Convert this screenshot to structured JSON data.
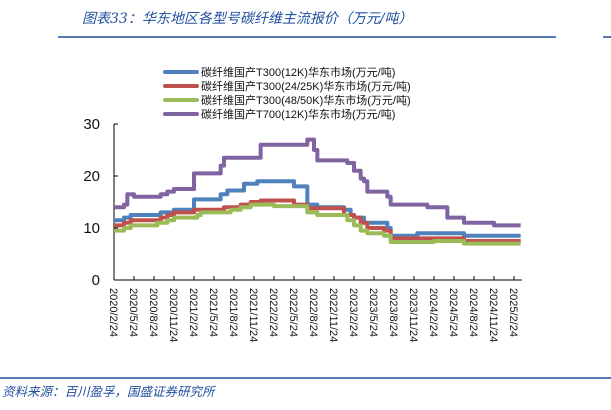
{
  "chart_data": {
    "type": "line",
    "title": "图表33：华东地区各型号碳纤维主流报价（万元/吨）",
    "source": "资料来源：百川盈孚，国盛证券研究所",
    "xlabel": "",
    "ylabel": "",
    "ylim": [
      0,
      30
    ],
    "yticks": [
      0,
      10,
      20,
      30
    ],
    "xlim": [
      "2020-02-24",
      "2025-05-24"
    ],
    "xtick_labels": [
      "2020/2/24",
      "2020/5/24",
      "2020/8/24",
      "2020/11/24",
      "2021/2/24",
      "2021/5/24",
      "2021/8/24",
      "2021/11/24",
      "2022/2/24",
      "2022/5/24",
      "2022/8/24",
      "2022/11/24",
      "2023/2/24",
      "2023/5/24",
      "2023/8/24",
      "2023/11/24",
      "2024/2/24",
      "2024/5/24",
      "2024/8/24",
      "2024/11/24",
      "2025/2/24"
    ],
    "grid": false,
    "legend_position": "top",
    "line_style": "step",
    "series": [
      {
        "name": "碳纤维国产T300(12K)华东市场(万元/吨)",
        "color": "#4f81bd",
        "points": [
          [
            "2020-02-24",
            11.5
          ],
          [
            "2020-04-09",
            12
          ],
          [
            "2020-05-09",
            12.5
          ],
          [
            "2020-09-24",
            13
          ],
          [
            "2020-11-24",
            13.5
          ],
          [
            "2021-02-24",
            15.5
          ],
          [
            "2021-06-24",
            16.5
          ],
          [
            "2021-07-24",
            17.2
          ],
          [
            "2021-10-09",
            18.5
          ],
          [
            "2021-12-09",
            19
          ],
          [
            "2022-05-24",
            18
          ],
          [
            "2022-07-24",
            14.5
          ],
          [
            "2022-09-09",
            14
          ],
          [
            "2023-01-09",
            13.5
          ],
          [
            "2023-02-09",
            12.5
          ],
          [
            "2023-02-24",
            12
          ],
          [
            "2023-04-09",
            11
          ],
          [
            "2023-07-24",
            10
          ],
          [
            "2023-08-09",
            8.5
          ],
          [
            "2023-12-09",
            9
          ],
          [
            "2024-07-09",
            8.5
          ],
          [
            "2025-03-24",
            8.5
          ]
        ]
      },
      {
        "name": "碳纤维国产T300(24/25K)华东市场(万元/吨)",
        "color": "#c0504d",
        "points": [
          [
            "2020-02-24",
            10.5
          ],
          [
            "2020-04-09",
            11
          ],
          [
            "2020-05-09",
            11.5
          ],
          [
            "2020-09-24",
            12
          ],
          [
            "2020-10-24",
            12.5
          ],
          [
            "2020-11-24",
            13
          ],
          [
            "2021-02-24",
            13.5
          ],
          [
            "2021-07-09",
            14
          ],
          [
            "2021-09-24",
            14.5
          ],
          [
            "2021-11-09",
            15
          ],
          [
            "2021-12-24",
            15.3
          ],
          [
            "2022-05-24",
            14.5
          ],
          [
            "2022-07-24",
            13.8
          ],
          [
            "2023-01-09",
            12.5
          ],
          [
            "2023-02-24",
            12
          ],
          [
            "2023-03-24",
            11
          ],
          [
            "2023-04-24",
            10
          ],
          [
            "2023-07-09",
            9.5
          ],
          [
            "2023-08-09",
            8
          ],
          [
            "2024-07-09",
            7.5
          ],
          [
            "2025-03-24",
            7.5
          ]
        ]
      },
      {
        "name": "碳纤维国产T300(48/50K)华东市场(万元/吨)",
        "color": "#9bbb59",
        "points": [
          [
            "2020-02-24",
            9.5
          ],
          [
            "2020-04-09",
            10
          ],
          [
            "2020-05-09",
            10.5
          ],
          [
            "2020-09-09",
            11
          ],
          [
            "2020-10-24",
            11.5
          ],
          [
            "2020-11-24",
            12
          ],
          [
            "2021-03-09",
            12.5
          ],
          [
            "2021-03-24",
            13
          ],
          [
            "2021-08-09",
            13.5
          ],
          [
            "2021-09-24",
            14
          ],
          [
            "2021-11-09",
            14.5
          ],
          [
            "2022-02-24",
            14.2
          ],
          [
            "2022-07-24",
            13
          ],
          [
            "2022-09-09",
            12.5
          ],
          [
            "2023-01-24",
            11.5
          ],
          [
            "2023-02-24",
            10.5
          ],
          [
            "2023-03-24",
            9.5
          ],
          [
            "2023-04-24",
            9
          ],
          [
            "2023-07-09",
            8.5
          ],
          [
            "2023-08-09",
            7.3
          ],
          [
            "2024-02-24",
            7.5
          ],
          [
            "2024-07-09",
            7
          ],
          [
            "2025-03-24",
            7
          ]
        ]
      },
      {
        "name": "碳纤维国产T700(12K)华东市场(万元/吨)",
        "color": "#8064a2",
        "points": [
          [
            "2020-02-24",
            14
          ],
          [
            "2020-04-09",
            14.5
          ],
          [
            "2020-04-24",
            16.5
          ],
          [
            "2020-05-24",
            16
          ],
          [
            "2020-09-24",
            16.5
          ],
          [
            "2020-10-24",
            17
          ],
          [
            "2020-11-24",
            17.5
          ],
          [
            "2021-02-24",
            20.5
          ],
          [
            "2021-06-24",
            22
          ],
          [
            "2021-07-09",
            23.5
          ],
          [
            "2021-12-24",
            26
          ],
          [
            "2022-07-24",
            27
          ],
          [
            "2022-08-24",
            25
          ],
          [
            "2022-09-09",
            23
          ],
          [
            "2023-01-24",
            22.5
          ],
          [
            "2023-02-24",
            21
          ],
          [
            "2023-03-24",
            19.5
          ],
          [
            "2023-04-09",
            19
          ],
          [
            "2023-04-24",
            17
          ],
          [
            "2023-07-24",
            16
          ],
          [
            "2023-08-09",
            14.5
          ],
          [
            "2024-01-24",
            14
          ],
          [
            "2024-04-24",
            12
          ],
          [
            "2024-07-09",
            11
          ],
          [
            "2024-11-24",
            10.5
          ],
          [
            "2025-03-24",
            10.5
          ]
        ]
      }
    ]
  }
}
